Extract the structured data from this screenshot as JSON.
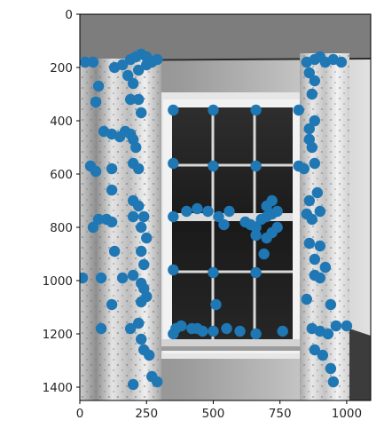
{
  "chart_data": {
    "type": "scatter",
    "title": "",
    "xlabel": "",
    "ylabel": "",
    "xlim": [
      0,
      1090
    ],
    "ylim": [
      1450,
      0
    ],
    "x_ticks": [
      0,
      250,
      500,
      750,
      1000
    ],
    "y_ticks": [
      0,
      200,
      400,
      600,
      800,
      1000,
      1200,
      1400
    ],
    "x_tick_labels": [
      "0",
      "250",
      "500",
      "750",
      "1000"
    ],
    "y_tick_labels": [
      "0",
      "200",
      "400",
      "600",
      "800",
      "1000",
      "1200",
      "1400"
    ],
    "grid": false,
    "background": "grayscale photo of a window with curtains",
    "series": [
      {
        "color": "#1f77b4",
        "points": [
          [
            20,
            180
          ],
          [
            50,
            180
          ],
          [
            130,
            200
          ],
          [
            160,
            190
          ],
          [
            190,
            170
          ],
          [
            210,
            160
          ],
          [
            230,
            150
          ],
          [
            250,
            160
          ],
          [
            270,
            180
          ],
          [
            290,
            170
          ],
          [
            180,
            230
          ],
          [
            220,
            210
          ],
          [
            250,
            190
          ],
          [
            200,
            260
          ],
          [
            70,
            270
          ],
          [
            190,
            320
          ],
          [
            220,
            320
          ],
          [
            230,
            370
          ],
          [
            60,
            330
          ],
          [
            90,
            440
          ],
          [
            120,
            450
          ],
          [
            150,
            460
          ],
          [
            170,
            440
          ],
          [
            190,
            450
          ],
          [
            200,
            470
          ],
          [
            210,
            500
          ],
          [
            40,
            570
          ],
          [
            60,
            590
          ],
          [
            120,
            580
          ],
          [
            200,
            560
          ],
          [
            220,
            580
          ],
          [
            350,
            360
          ],
          [
            500,
            360
          ],
          [
            660,
            360
          ],
          [
            820,
            360
          ],
          [
            350,
            560
          ],
          [
            500,
            570
          ],
          [
            660,
            570
          ],
          [
            820,
            570
          ],
          [
            350,
            760
          ],
          [
            400,
            740
          ],
          [
            440,
            730
          ],
          [
            480,
            740
          ],
          [
            520,
            760
          ],
          [
            540,
            790
          ],
          [
            560,
            740
          ],
          [
            620,
            780
          ],
          [
            640,
            790
          ],
          [
            660,
            800
          ],
          [
            680,
            770
          ],
          [
            700,
            760
          ],
          [
            720,
            750
          ],
          [
            740,
            740
          ],
          [
            700,
            720
          ],
          [
            720,
            700
          ],
          [
            660,
            830
          ],
          [
            700,
            840
          ],
          [
            720,
            820
          ],
          [
            740,
            800
          ],
          [
            690,
            900
          ],
          [
            350,
            960
          ],
          [
            500,
            970
          ],
          [
            660,
            970
          ],
          [
            510,
            1090
          ],
          [
            440,
            1180
          ],
          [
            500,
            1190
          ],
          [
            550,
            1180
          ],
          [
            600,
            1190
          ],
          [
            660,
            1200
          ],
          [
            760,
            1190
          ],
          [
            350,
            1200
          ],
          [
            360,
            1180
          ],
          [
            380,
            1170
          ],
          [
            420,
            1180
          ],
          [
            460,
            1190
          ],
          [
            120,
            660
          ],
          [
            200,
            700
          ],
          [
            220,
            720
          ],
          [
            100,
            770
          ],
          [
            200,
            760
          ],
          [
            240,
            760
          ],
          [
            50,
            800
          ],
          [
            70,
            770
          ],
          [
            120,
            780
          ],
          [
            230,
            800
          ],
          [
            250,
            840
          ],
          [
            130,
            890
          ],
          [
            230,
            890
          ],
          [
            240,
            940
          ],
          [
            10,
            990
          ],
          [
            80,
            990
          ],
          [
            160,
            990
          ],
          [
            200,
            980
          ],
          [
            230,
            1010
          ],
          [
            240,
            1030
          ],
          [
            120,
            1090
          ],
          [
            230,
            1080
          ],
          [
            250,
            1060
          ],
          [
            80,
            1180
          ],
          [
            190,
            1180
          ],
          [
            220,
            1160
          ],
          [
            230,
            1220
          ],
          [
            240,
            1260
          ],
          [
            260,
            1280
          ],
          [
            270,
            1360
          ],
          [
            290,
            1380
          ],
          [
            200,
            1390
          ],
          [
            850,
            180
          ],
          [
            880,
            170
          ],
          [
            900,
            160
          ],
          [
            920,
            180
          ],
          [
            950,
            170
          ],
          [
            980,
            180
          ],
          [
            860,
            220
          ],
          [
            880,
            250
          ],
          [
            870,
            300
          ],
          [
            880,
            400
          ],
          [
            860,
            430
          ],
          [
            860,
            470
          ],
          [
            870,
            500
          ],
          [
            840,
            580
          ],
          [
            880,
            560
          ],
          [
            890,
            670
          ],
          [
            860,
            700
          ],
          [
            850,
            750
          ],
          [
            870,
            770
          ],
          [
            900,
            740
          ],
          [
            860,
            860
          ],
          [
            900,
            870
          ],
          [
            880,
            920
          ],
          [
            920,
            950
          ],
          [
            880,
            980
          ],
          [
            900,
            990
          ],
          [
            850,
            1070
          ],
          [
            940,
            1090
          ],
          [
            870,
            1180
          ],
          [
            900,
            1190
          ],
          [
            930,
            1200
          ],
          [
            960,
            1170
          ],
          [
            1000,
            1170
          ],
          [
            880,
            1260
          ],
          [
            910,
            1280
          ],
          [
            940,
            1330
          ],
          [
            950,
            1380
          ]
        ]
      }
    ]
  }
}
